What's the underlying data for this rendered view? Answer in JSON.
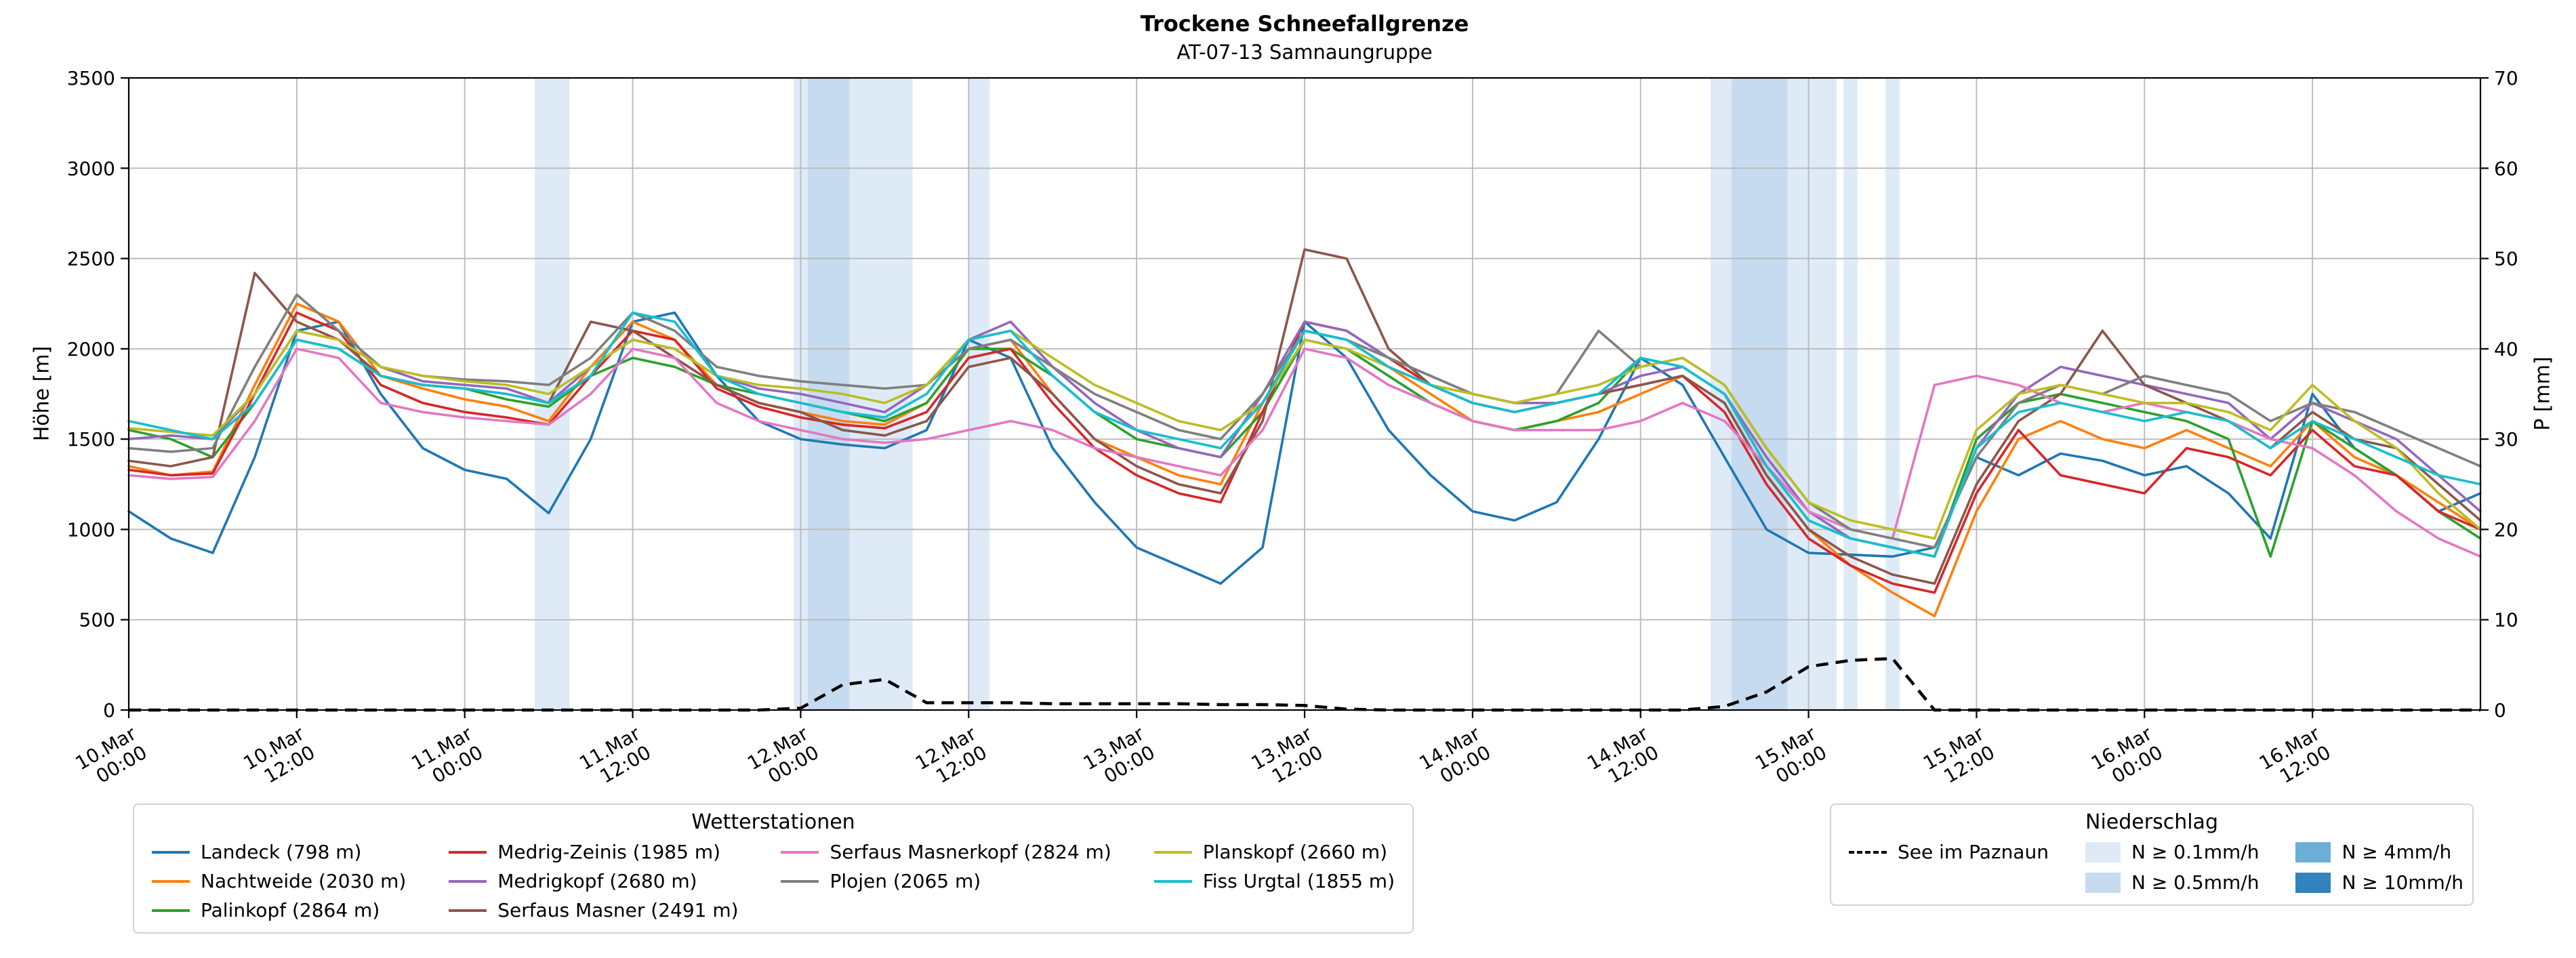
{
  "header": {
    "title": "Trockene Schneefallgrenze",
    "subtitle": "AT-07-13 Samnaungruppe"
  },
  "chart_data": {
    "type": "line",
    "x_encoding": "hours since 10.Mar 00:00",
    "xlim": [
      0,
      168
    ],
    "x_hours": [
      0,
      3,
      6,
      9,
      12,
      15,
      18,
      21,
      24,
      27,
      30,
      33,
      36,
      39,
      42,
      45,
      48,
      51,
      54,
      57,
      60,
      63,
      66,
      69,
      72,
      75,
      78,
      81,
      84,
      87,
      90,
      93,
      96,
      99,
      102,
      105,
      108,
      111,
      114,
      117,
      120,
      123,
      126,
      129,
      132,
      135,
      138,
      141,
      144,
      147,
      150,
      153,
      156,
      159,
      162,
      165,
      168
    ],
    "x_ticks": {
      "hours": [
        0,
        12,
        24,
        36,
        48,
        60,
        72,
        84,
        96,
        108,
        120,
        132,
        144,
        156
      ],
      "labels": [
        [
          "10.Mar",
          "00:00"
        ],
        [
          "10.Mar",
          "12:00"
        ],
        [
          "11.Mar",
          "00:00"
        ],
        [
          "11.Mar",
          "12:00"
        ],
        [
          "12.Mar",
          "00:00"
        ],
        [
          "12.Mar",
          "12:00"
        ],
        [
          "13.Mar",
          "00:00"
        ],
        [
          "13.Mar",
          "12:00"
        ],
        [
          "14.Mar",
          "00:00"
        ],
        [
          "14.Mar",
          "12:00"
        ],
        [
          "15.Mar",
          "00:00"
        ],
        [
          "15.Mar",
          "12:00"
        ],
        [
          "16.Mar",
          "00:00"
        ],
        [
          "16.Mar",
          "12:00"
        ]
      ]
    },
    "y_left": {
      "label": "Höhe [m]",
      "lim": [
        0,
        3500
      ],
      "ticks": [
        0,
        500,
        1000,
        1500,
        2000,
        2500,
        3000,
        3500
      ]
    },
    "y_right": {
      "label": "P [mm]",
      "lim": [
        0,
        70
      ],
      "ticks": [
        0,
        10,
        20,
        30,
        40,
        50,
        60,
        70
      ]
    },
    "grid": true,
    "series": [
      {
        "name": "Landeck (798 m)",
        "color": "#1f77b4",
        "values": [
          1100,
          950,
          870,
          1400,
          2100,
          2150,
          1750,
          1450,
          1330,
          1280,
          1090,
          1500,
          2150,
          2200,
          1850,
          1600,
          1500,
          1470,
          1450,
          1550,
          2050,
          1950,
          1450,
          1150,
          900,
          800,
          700,
          900,
          2150,
          1950,
          1550,
          1300,
          1100,
          1050,
          1150,
          1500,
          1950,
          1800,
          1400,
          1000,
          870,
          860,
          850,
          900,
          1400,
          1300,
          1420,
          1380,
          1300,
          1350,
          1200,
          950,
          1750,
          1450,
          1300,
          1100,
          1200
        ]
      },
      {
        "name": "Nachtweide (2030 m)",
        "color": "#ff7f0e",
        "values": [
          1350,
          1300,
          1320,
          1800,
          2250,
          2150,
          1850,
          1780,
          1720,
          1680,
          1600,
          1900,
          2150,
          2050,
          1800,
          1700,
          1650,
          1600,
          1580,
          1700,
          2000,
          2050,
          1750,
          1500,
          1400,
          1300,
          1250,
          1700,
          2100,
          2050,
          1900,
          1750,
          1600,
          1550,
          1600,
          1650,
          1750,
          1850,
          1700,
          1300,
          1000,
          800,
          650,
          520,
          1100,
          1500,
          1600,
          1500,
          1450,
          1550,
          1450,
          1350,
          1600,
          1400,
          1300,
          1150,
          1000
        ]
      },
      {
        "name": "Palinkopf (2864 m)",
        "color": "#2ca02c",
        "values": [
          1550,
          1500,
          1400,
          1700,
          2050,
          2000,
          1850,
          1800,
          1780,
          1720,
          1680,
          1850,
          1950,
          1900,
          1800,
          1750,
          1700,
          1650,
          1600,
          1700,
          2000,
          2000,
          1850,
          1650,
          1500,
          1450,
          1400,
          1650,
          2050,
          2000,
          1850,
          1700,
          1600,
          1550,
          1600,
          1700,
          1950,
          1900,
          1750,
          1350,
          1050,
          950,
          900,
          850,
          1500,
          1700,
          1750,
          1700,
          1650,
          1600,
          1500,
          850,
          1600,
          1450,
          1300,
          1100,
          950
        ]
      },
      {
        "name": "Medrig-Zeinis (1985 m)",
        "color": "#d62728",
        "values": [
          1330,
          1300,
          1310,
          1750,
          2200,
          2100,
          1800,
          1700,
          1650,
          1620,
          1580,
          1850,
          2100,
          2050,
          1780,
          1680,
          1620,
          1580,
          1560,
          1650,
          1950,
          2000,
          1700,
          1450,
          1300,
          1200,
          1150,
          1650,
          2150,
          2100,
          1950,
          1800,
          1700,
          1650,
          1700,
          1750,
          1800,
          1850,
          1650,
          1250,
          950,
          800,
          700,
          650,
          1200,
          1550,
          1300,
          1250,
          1200,
          1450,
          1400,
          1300,
          1550,
          1350,
          1300,
          1100,
          1000
        ]
      },
      {
        "name": "Medrigkopf (2680 m)",
        "color": "#9467bd",
        "values": [
          1500,
          1520,
          1500,
          1750,
          2100,
          2050,
          1900,
          1820,
          1800,
          1780,
          1700,
          1900,
          2050,
          2000,
          1850,
          1780,
          1750,
          1700,
          1650,
          1800,
          2050,
          2150,
          1900,
          1700,
          1550,
          1450,
          1400,
          1750,
          2150,
          2100,
          1950,
          1850,
          1750,
          1700,
          1700,
          1750,
          1850,
          1900,
          1750,
          1400,
          1100,
          950,
          900,
          850,
          1450,
          1750,
          1900,
          1850,
          1800,
          1750,
          1700,
          1500,
          1700,
          1600,
          1500,
          1300,
          1100
        ]
      },
      {
        "name": "Serfaus Masner (2491 m)",
        "color": "#8c564b",
        "values": [
          1380,
          1350,
          1400,
          2420,
          2150,
          2050,
          1850,
          1800,
          1780,
          1750,
          1700,
          2150,
          2100,
          1950,
          1800,
          1700,
          1650,
          1550,
          1520,
          1600,
          1900,
          1950,
          1750,
          1500,
          1350,
          1250,
          1200,
          1600,
          2550,
          2500,
          2000,
          1800,
          1700,
          1650,
          1700,
          1750,
          1800,
          1850,
          1700,
          1300,
          1000,
          850,
          750,
          700,
          1250,
          1600,
          1750,
          2100,
          1800,
          1700,
          1600,
          1450,
          1650,
          1500,
          1450,
          1250,
          1050
        ]
      },
      {
        "name": "Serfaus Masnerkopf (2824 m)",
        "color": "#e377c2",
        "values": [
          1300,
          1280,
          1290,
          1600,
          2000,
          1950,
          1700,
          1650,
          1620,
          1600,
          1580,
          1750,
          2000,
          1950,
          1700,
          1600,
          1550,
          1500,
          1480,
          1500,
          1550,
          1600,
          1550,
          1450,
          1400,
          1350,
          1300,
          1550,
          2000,
          1950,
          1800,
          1700,
          1600,
          1550,
          1550,
          1550,
          1600,
          1700,
          1600,
          1350,
          1100,
          1000,
          950,
          1800,
          1850,
          1800,
          1700,
          1650,
          1700,
          1650,
          1600,
          1500,
          1450,
          1300,
          1100,
          950,
          850
        ]
      },
      {
        "name": "Plojen (2065 m)",
        "color": "#7f7f7f",
        "values": [
          1450,
          1430,
          1450,
          1900,
          2300,
          2100,
          1900,
          1850,
          1830,
          1820,
          1800,
          1950,
          2200,
          2100,
          1900,
          1850,
          1820,
          1800,
          1780,
          1800,
          2000,
          2050,
          1900,
          1750,
          1650,
          1550,
          1500,
          1750,
          2100,
          2050,
          1950,
          1850,
          1750,
          1700,
          1750,
          2100,
          1900,
          1950,
          1800,
          1450,
          1150,
          1000,
          950,
          900,
          1400,
          1700,
          1800,
          1750,
          1850,
          1800,
          1750,
          1600,
          1700,
          1650,
          1550,
          1450,
          1350
        ]
      },
      {
        "name": "Planskopf (2660 m)",
        "color": "#bcbd22",
        "values": [
          1560,
          1540,
          1520,
          1750,
          2100,
          2050,
          1900,
          1850,
          1820,
          1800,
          1750,
          1900,
          2050,
          2000,
          1850,
          1800,
          1780,
          1750,
          1700,
          1800,
          2050,
          2100,
          1950,
          1800,
          1700,
          1600,
          1550,
          1700,
          2050,
          2000,
          1900,
          1800,
          1750,
          1700,
          1750,
          1800,
          1900,
          1950,
          1800,
          1450,
          1150,
          1050,
          1000,
          950,
          1550,
          1750,
          1800,
          1750,
          1700,
          1700,
          1650,
          1550,
          1800,
          1600,
          1450,
          1200,
          1000
        ]
      },
      {
        "name": "Fiss Urgtal  (1855 m)",
        "color": "#17becf",
        "values": [
          1600,
          1550,
          1500,
          1700,
          2050,
          2000,
          1850,
          1800,
          1780,
          1750,
          1700,
          1850,
          2200,
          2150,
          1850,
          1750,
          1700,
          1650,
          1620,
          1750,
          2050,
          2100,
          1850,
          1650,
          1550,
          1500,
          1450,
          1700,
          2100,
          2050,
          1900,
          1800,
          1700,
          1650,
          1700,
          1750,
          1950,
          1900,
          1750,
          1350,
          1050,
          950,
          900,
          850,
          1450,
          1650,
          1700,
          1650,
          1600,
          1650,
          1600,
          1450,
          1600,
          1500,
          1400,
          1300,
          1250
        ]
      }
    ],
    "precip_line": {
      "name": "See im Paznaun",
      "color": "#000000",
      "axis": "right",
      "style": "dashed",
      "values": [
        0,
        0,
        0,
        0,
        0,
        0,
        0,
        0,
        0,
        0,
        0,
        0,
        0,
        0,
        0,
        0,
        0.2,
        2.8,
        3.4,
        0.8,
        0.8,
        0.8,
        0.7,
        0.7,
        0.7,
        0.7,
        0.6,
        0.6,
        0.5,
        0.1,
        0,
        0,
        0,
        0,
        0,
        0,
        0,
        0,
        0.4,
        2.0,
        4.8,
        5.5,
        5.7,
        0,
        0,
        0,
        0,
        0,
        0,
        0,
        0,
        0,
        0,
        0,
        0,
        0,
        0
      ]
    },
    "bands": [
      {
        "from": 29,
        "to": 31.5,
        "level": "0.1"
      },
      {
        "from": 47.5,
        "to": 48.5,
        "level": "0.1"
      },
      {
        "from": 48.5,
        "to": 51.5,
        "level": "0.5"
      },
      {
        "from": 51.5,
        "to": 56,
        "level": "0.1"
      },
      {
        "from": 60,
        "to": 61.5,
        "level": "0.1"
      },
      {
        "from": 113,
        "to": 114.5,
        "level": "0.1"
      },
      {
        "from": 114.5,
        "to": 118.5,
        "level": "0.5"
      },
      {
        "from": 118.5,
        "to": 122,
        "level": "0.1"
      },
      {
        "from": 122.5,
        "to": 123.5,
        "level": "0.1"
      },
      {
        "from": 125.5,
        "to": 126.5,
        "level": "0.1"
      }
    ],
    "band_colors": {
      "0.1": "#deebf7",
      "0.5": "#c6dbef",
      "4": "#6baed6",
      "10": "#3182bd"
    }
  },
  "legend_stations": {
    "title": "Wetterstationen",
    "columns": [
      [
        0,
        1,
        2
      ],
      [
        3,
        4,
        5
      ],
      [
        6,
        7
      ],
      [
        8,
        9
      ]
    ]
  },
  "legend_precip": {
    "title": "Niederschlag",
    "line_label": "See im Paznaun",
    "patches": [
      {
        "label": "N ≥ 0.1mm/h",
        "level": "0.1"
      },
      {
        "label": "N ≥ 0.5mm/h",
        "level": "0.5"
      },
      {
        "label": "N ≥ 4mm/h",
        "level": "4"
      },
      {
        "label": "N ≥ 10mm/h",
        "level": "10"
      }
    ]
  }
}
